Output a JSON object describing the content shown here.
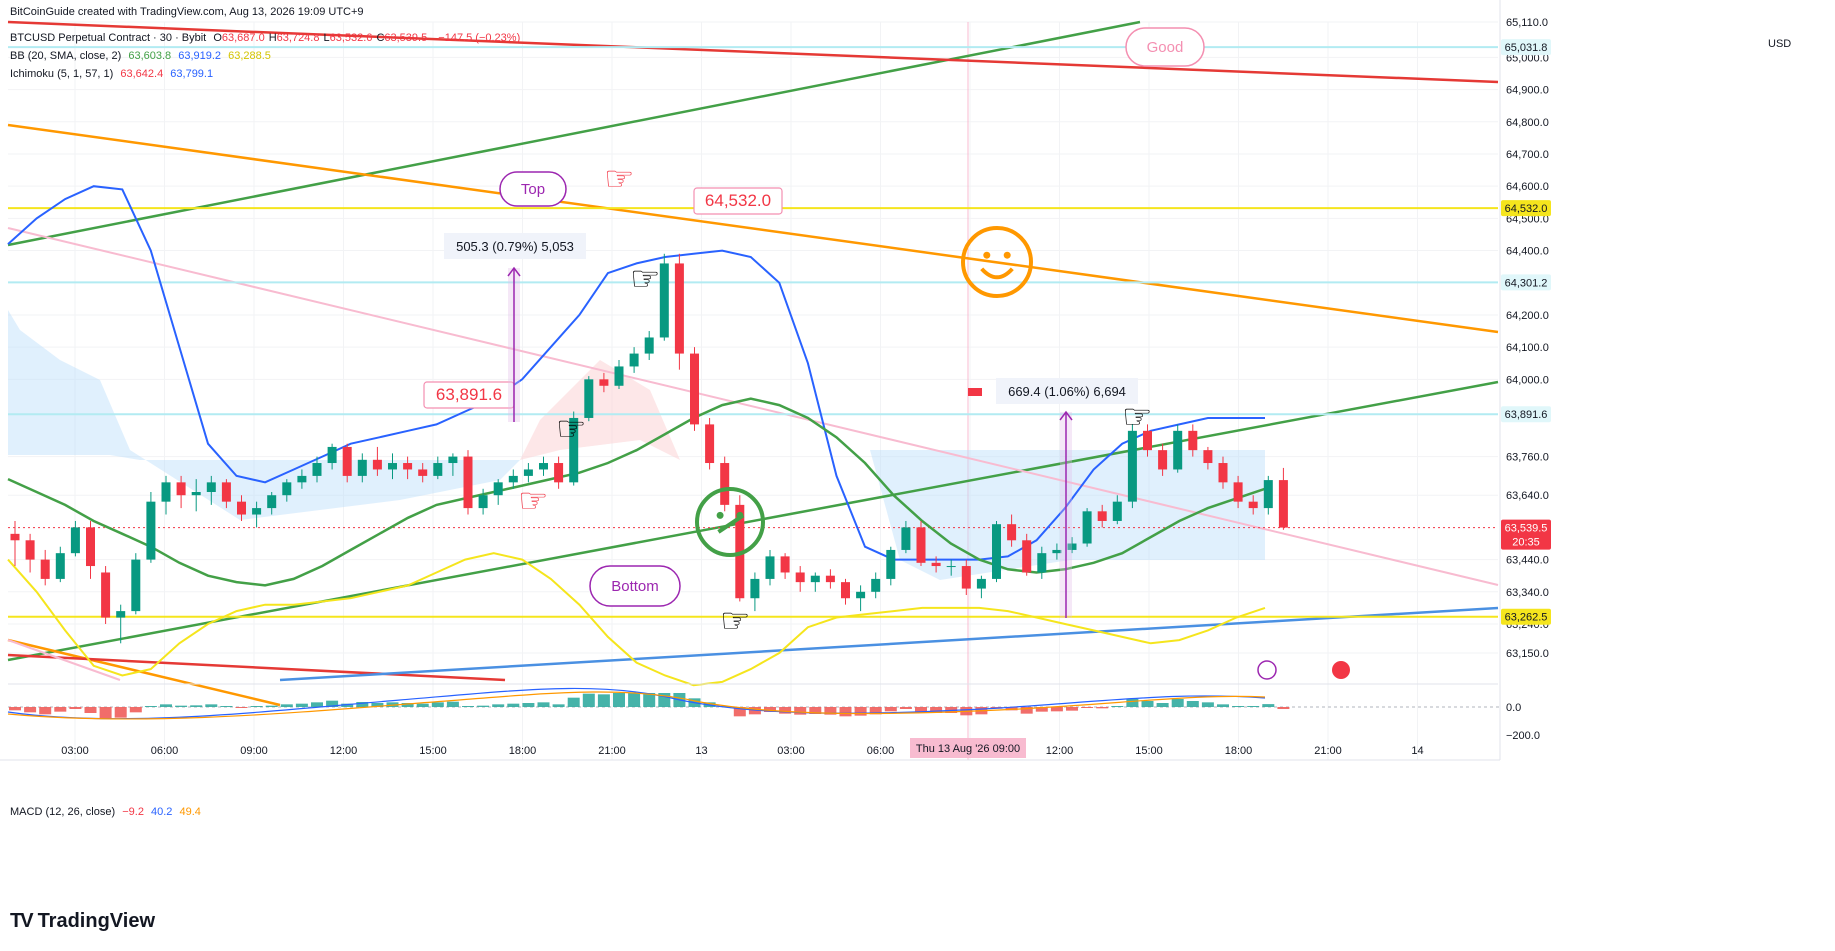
{
  "credit": "BitCoinGuide created with TradingView.com, Aug 13, 2026 19:09 UTC+9",
  "legend": {
    "symbol": "BTCUSD Perpetual Contract · 30 · Bybit",
    "ohlc": [
      {
        "k": "O",
        "v": "63,687.0"
      },
      {
        "k": "H",
        "v": "63,724.8"
      },
      {
        "k": "L",
        "v": "63,532.6"
      },
      {
        "k": "C",
        "v": "63,539.5"
      }
    ],
    "change": "−147.5 (−0.23%)",
    "bb_label": "BB (20, SMA, close, 2)",
    "bb_values": [
      "63,603.8",
      "63,919.2",
      "63,288.5"
    ],
    "ichimoku_label": "Ichimoku (5, 1, 57, 1)",
    "ichimoku_values": [
      "63,642.4",
      "63,799.1"
    ],
    "macd_label": "MACD (12, 26, close)",
    "macd_values": [
      "−9.2",
      "40.2",
      "49.4"
    ]
  },
  "currency": "USD",
  "brand": "TradingView",
  "colors": {
    "up": "#089981",
    "down": "#f23645",
    "bb_basis": "#43a047",
    "bb_band": "#2962ff",
    "yellow": "#f5e51d",
    "orange": "#ff9800",
    "red_line": "#e53935",
    "pink_line": "#f8bbd0",
    "blue_line": "#4a90e2",
    "cloud": "#bbdefb",
    "teal_hline": "#b2ebf2"
  },
  "chart_data": {
    "type": "candlestick",
    "ylim": [
      63066,
      65110
    ],
    "y_ticks": [
      63150,
      63240,
      63340,
      63440,
      63640,
      63760,
      64000,
      64100,
      64200,
      64400,
      64500,
      64600,
      64700,
      64800,
      64900,
      65000,
      65110
    ],
    "price_labels": [
      {
        "value": 65031.8,
        "text": "65,031.8",
        "kind": "hline"
      },
      {
        "value": 64532.0,
        "text": "64,532.0",
        "kind": "hline-yellow"
      },
      {
        "value": 64301.2,
        "text": "64,301.2",
        "kind": "hline"
      },
      {
        "value": 63891.6,
        "text": "63,891.6",
        "kind": "hline"
      },
      {
        "value": 63262.5,
        "text": "63,262.5",
        "kind": "hline-yellow"
      },
      {
        "value": 63539.5,
        "text": "63,539.5",
        "kind": "last"
      }
    ],
    "last_countdown": "20:35",
    "x_ticks": [
      "03:00",
      "06:00",
      "09:00",
      "12:00",
      "15:00",
      "18:00",
      "21:00",
      "13",
      "03:00",
      "06:00",
      "09:00",
      "12:00",
      "15:00",
      "18:00",
      "21:00",
      "14"
    ],
    "crosshair_label": "Thu 13 Aug '26  09:00",
    "candles": [
      [
        63520,
        63560,
        63420,
        63500
      ],
      [
        63500,
        63520,
        63400,
        63440
      ],
      [
        63440,
        63470,
        63360,
        63380
      ],
      [
        63380,
        63480,
        63370,
        63460
      ],
      [
        63460,
        63560,
        63450,
        63540
      ],
      [
        63540,
        63560,
        63380,
        63420
      ],
      [
        63400,
        63420,
        63240,
        63260
      ],
      [
        63260,
        63300,
        63180,
        63280
      ],
      [
        63280,
        63460,
        63270,
        63440
      ],
      [
        63440,
        63650,
        63430,
        63620
      ],
      [
        63620,
        63700,
        63580,
        63680
      ],
      [
        63680,
        63700,
        63600,
        63640
      ],
      [
        63640,
        63690,
        63590,
        63650
      ],
      [
        63650,
        63700,
        63610,
        63680
      ],
      [
        63680,
        63690,
        63600,
        63620
      ],
      [
        63620,
        63640,
        63560,
        63580
      ],
      [
        63580,
        63620,
        63540,
        63600
      ],
      [
        63600,
        63650,
        63580,
        63640
      ],
      [
        63640,
        63690,
        63620,
        63680
      ],
      [
        63680,
        63720,
        63660,
        63700
      ],
      [
        63700,
        63760,
        63680,
        63740
      ],
      [
        63740,
        63800,
        63720,
        63790
      ],
      [
        63790,
        63800,
        63680,
        63700
      ],
      [
        63700,
        63770,
        63680,
        63750
      ],
      [
        63750,
        63790,
        63700,
        63720
      ],
      [
        63720,
        63770,
        63690,
        63740
      ],
      [
        63740,
        63760,
        63690,
        63720
      ],
      [
        63720,
        63740,
        63680,
        63700
      ],
      [
        63700,
        63760,
        63690,
        63740
      ],
      [
        63740,
        63770,
        63700,
        63760
      ],
      [
        63760,
        63780,
        63580,
        63600
      ],
      [
        63600,
        63660,
        63580,
        63640
      ],
      [
        63640,
        63690,
        63610,
        63680
      ],
      [
        63680,
        63720,
        63660,
        63700
      ],
      [
        63700,
        63740,
        63680,
        63720
      ],
      [
        63720,
        63760,
        63700,
        63740
      ],
      [
        63740,
        63760,
        63660,
        63680
      ],
      [
        63680,
        63900,
        63670,
        63880
      ],
      [
        63880,
        64010,
        63870,
        64000
      ],
      [
        64000,
        64020,
        63960,
        63980
      ],
      [
        63980,
        64060,
        63970,
        64040
      ],
      [
        64040,
        64100,
        64020,
        64080
      ],
      [
        64080,
        64150,
        64060,
        64130
      ],
      [
        64130,
        64390,
        64120,
        64360
      ],
      [
        64360,
        64390,
        64030,
        64080
      ],
      [
        64080,
        64100,
        63840,
        63860
      ],
      [
        63860,
        63880,
        63720,
        63740
      ],
      [
        63740,
        63760,
        63590,
        63610
      ],
      [
        63610,
        63640,
        63310,
        63320
      ],
      [
        63320,
        63400,
        63280,
        63380
      ],
      [
        63380,
        63470,
        63360,
        63450
      ],
      [
        63450,
        63460,
        63380,
        63400
      ],
      [
        63400,
        63420,
        63340,
        63370
      ],
      [
        63370,
        63400,
        63340,
        63390
      ],
      [
        63390,
        63410,
        63350,
        63370
      ],
      [
        63370,
        63380,
        63300,
        63320
      ],
      [
        63320,
        63360,
        63280,
        63340
      ],
      [
        63340,
        63400,
        63320,
        63380
      ],
      [
        63380,
        63480,
        63360,
        63470
      ],
      [
        63470,
        63560,
        63460,
        63540
      ],
      [
        63540,
        63560,
        63420,
        63430
      ],
      [
        63430,
        63450,
        63400,
        63420
      ],
      [
        63420,
        63440,
        63390,
        63420
      ],
      [
        63420,
        63440,
        63330,
        63350
      ],
      [
        63350,
        63390,
        63320,
        63380
      ],
      [
        63380,
        63560,
        63370,
        63550
      ],
      [
        63550,
        63580,
        63480,
        63500
      ],
      [
        63500,
        63520,
        63390,
        63400
      ],
      [
        63400,
        63480,
        63380,
        63460
      ],
      [
        63460,
        63490,
        63440,
        63470
      ],
      [
        63470,
        63510,
        63460,
        63490
      ],
      [
        63490,
        63600,
        63480,
        63590
      ],
      [
        63590,
        63610,
        63540,
        63560
      ],
      [
        63560,
        63640,
        63550,
        63620
      ],
      [
        63620,
        63860,
        63600,
        63840
      ],
      [
        63840,
        63860,
        63760,
        63780
      ],
      [
        63780,
        63800,
        63700,
        63720
      ],
      [
        63720,
        63860,
        63710,
        63840
      ],
      [
        63840,
        63860,
        63760,
        63780
      ],
      [
        63780,
        63790,
        63720,
        63740
      ],
      [
        63740,
        63760,
        63660,
        63680
      ],
      [
        63680,
        63700,
        63600,
        63620
      ],
      [
        63620,
        63640,
        63580,
        63600
      ],
      [
        63600,
        63700,
        63580,
        63687
      ],
      [
        63687,
        63724.8,
        63532.6,
        63539.5
      ]
    ],
    "bb_basis": [
      63690,
      63650,
      63610,
      63560,
      63520,
      63480,
      63430,
      63390,
      63370,
      63360,
      63380,
      63420,
      63470,
      63520,
      63570,
      63610,
      63630,
      63650,
      63670,
      63690,
      63710,
      63740,
      63780,
      63830,
      63880,
      63920,
      63940,
      63920,
      63880,
      63820,
      63740,
      63640,
      63560,
      63490,
      63440,
      63410,
      63400,
      63410,
      63430,
      63460,
      63510,
      63560,
      63600,
      63630,
      63660
    ],
    "bb_upper": [
      64420,
      64500,
      64560,
      64600,
      64590,
      64400,
      64100,
      63800,
      63700,
      63680,
      63720,
      63760,
      63800,
      63820,
      63840,
      63860,
      63900,
      63940,
      64000,
      64100,
      64200,
      64330,
      64360,
      64380,
      64390,
      64400,
      64380,
      64300,
      64050,
      63700,
      63480,
      63440,
      63440,
      63440,
      63440,
      63450,
      63500,
      63600,
      63720,
      63800,
      63840,
      63860,
      63880,
      63880,
      63880
    ],
    "bb_lower": [
      63440,
      63340,
      63220,
      63110,
      63080,
      63100,
      63180,
      63240,
      63280,
      63300,
      63300,
      63310,
      63320,
      63340,
      63360,
      63400,
      63440,
      63460,
      63440,
      63380,
      63300,
      63200,
      63120,
      63080,
      63050,
      63060,
      63100,
      63150,
      63230,
      63260,
      63270,
      63280,
      63290,
      63290,
      63290,
      63280,
      63260,
      63240,
      63220,
      63200,
      63180,
      63190,
      63220,
      63260,
      63290
    ],
    "macd": {
      "ylim": [
        -250,
        120
      ],
      "ticks": [
        "0.0",
        "−200.0"
      ]
    },
    "annotations": {
      "top_label": "Top",
      "bottom_label": "Bottom",
      "good_label": "Good",
      "label_64532": "64,532.0",
      "label_63891": "63,891.6",
      "measure1": "505.3 (0.79%) 5,053",
      "measure2": "669.4 (1.06%) 6,694"
    }
  }
}
